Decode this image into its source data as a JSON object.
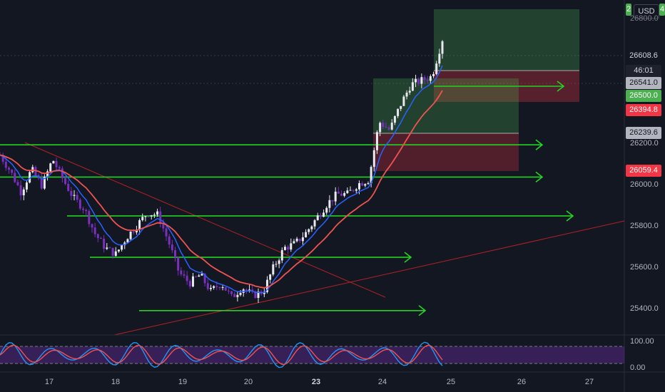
{
  "currency_button": "USD",
  "colors": {
    "background": "#131722",
    "up": "#e8e8f0",
    "down": "#7b2fbe",
    "ema": "#ef5350",
    "ma": "#2962ff",
    "hline": "#22d322",
    "green": "#4caf50",
    "red": "#f23645"
  },
  "price_labels": {
    "top_partial": "2",
    "top_partial_right": "4",
    "last": "26608.6",
    "last_timer": "46:01",
    "entry": "26541.0",
    "target": "26500.0",
    "stop": "26394.8",
    "level_1": "26239.6",
    "level_2": "26059.4"
  },
  "chart_data": {
    "type": "candlestick",
    "title": "",
    "xlabel": "",
    "ylabel": "",
    "x_ticks": [
      "17",
      "18",
      "19",
      "20",
      "23",
      "24",
      "25",
      "26",
      "27"
    ],
    "y_ticks": [
      "26200.0",
      "26000.0",
      "25800.0",
      "25600.0",
      "25400.0"
    ],
    "y_axis_top_partial": "26800.0",
    "ylim": [
      25330,
      26870
    ],
    "horizontal_levels": [
      26189,
      26033,
      25845,
      25645,
      25387
    ],
    "close_series": [
      26140,
      26060,
      25960,
      26070,
      25990,
      26120,
      26020,
      25930,
      25880,
      25760,
      25690,
      25660,
      25740,
      25800,
      25860,
      25850,
      25720,
      25570,
      25520,
      25560,
      25480,
      25520,
      25450,
      25500,
      25460,
      25480,
      25600,
      25690,
      25710,
      25760,
      25830,
      25900,
      25950,
      25950,
      26000,
      26020,
      26300,
      26260,
      26380,
      26480,
      26500,
      26520,
      26700
    ],
    "stochastic": {
      "ticks": [
        "100.00",
        "0.00"
      ],
      "levels": [
        80,
        20
      ]
    }
  }
}
